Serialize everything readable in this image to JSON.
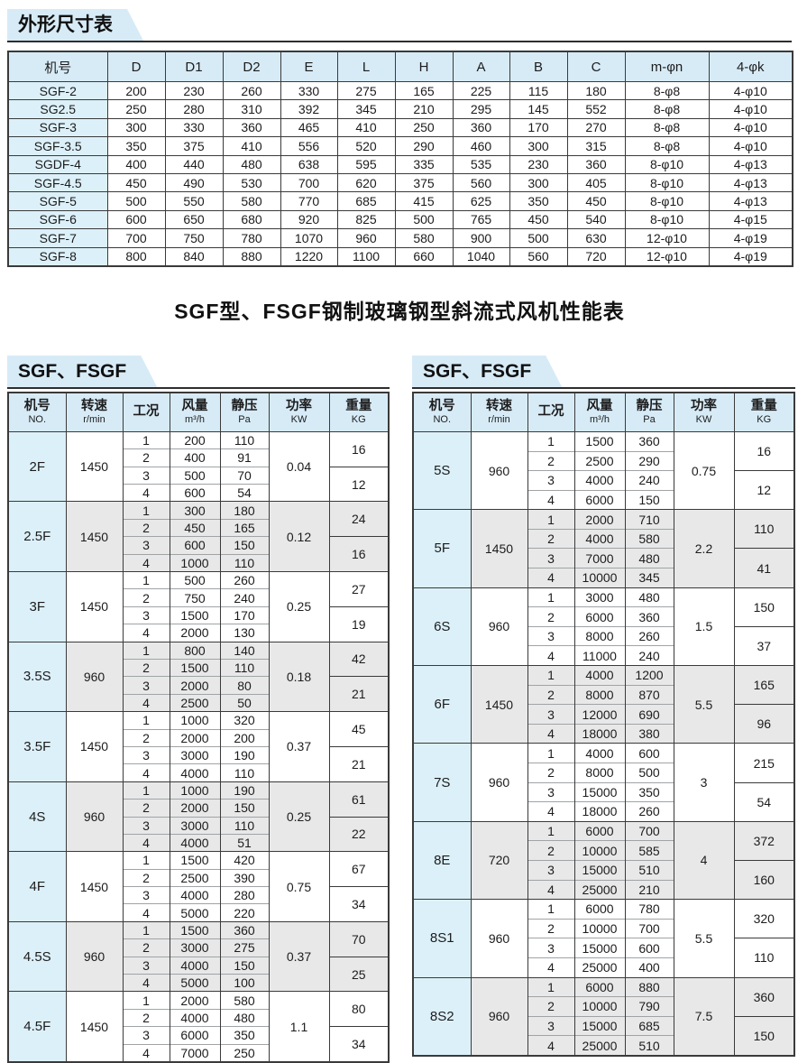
{
  "dimension_section": {
    "tab": "外形尺寸表",
    "columns": [
      "机号",
      "D",
      "D1",
      "D2",
      "E",
      "L",
      "H",
      "A",
      "B",
      "C",
      "m-φn",
      "4-φk"
    ],
    "rows": [
      [
        "SGF-2",
        "200",
        "230",
        "260",
        "330",
        "275",
        "165",
        "225",
        "115",
        "180",
        "8-φ8",
        "4-φ10"
      ],
      [
        "SG2.5",
        "250",
        "280",
        "310",
        "392",
        "345",
        "210",
        "295",
        "145",
        "552",
        "8-φ8",
        "4-φ10"
      ],
      [
        "SGF-3",
        "300",
        "330",
        "360",
        "465",
        "410",
        "250",
        "360",
        "170",
        "270",
        "8-φ8",
        "4-φ10"
      ],
      [
        "SGF-3.5",
        "350",
        "375",
        "410",
        "556",
        "520",
        "290",
        "460",
        "300",
        "315",
        "8-φ8",
        "4-φ10"
      ],
      [
        "SGDF-4",
        "400",
        "440",
        "480",
        "638",
        "595",
        "335",
        "535",
        "230",
        "360",
        "8-φ10",
        "4-φ13"
      ],
      [
        "SGF-4.5",
        "450",
        "490",
        "530",
        "700",
        "620",
        "375",
        "560",
        "300",
        "405",
        "8-φ10",
        "4-φ13"
      ],
      [
        "SGF-5",
        "500",
        "550",
        "580",
        "770",
        "685",
        "415",
        "625",
        "350",
        "450",
        "8-φ10",
        "4-φ13"
      ],
      [
        "SGF-6",
        "600",
        "650",
        "680",
        "920",
        "825",
        "500",
        "765",
        "450",
        "540",
        "8-φ10",
        "4-φ15"
      ],
      [
        "SGF-7",
        "700",
        "750",
        "780",
        "1070",
        "960",
        "580",
        "900",
        "500",
        "630",
        "12-φ10",
        "4-φ19"
      ],
      [
        "SGF-8",
        "800",
        "840",
        "880",
        "1220",
        "1100",
        "660",
        "1040",
        "560",
        "720",
        "12-φ10",
        "4-φ19"
      ]
    ]
  },
  "main_title": "SGF型、FSGF钢制玻璃钢型斜流式风机性能表",
  "performance_tables": [
    {
      "tab": "SGF、FSGF",
      "columns": [
        {
          "label": "机号",
          "unit": "NO."
        },
        {
          "label": "转速",
          "unit": "r/min"
        },
        {
          "label": "工况",
          "unit": ""
        },
        {
          "label": "风量",
          "unit": "m³/h"
        },
        {
          "label": "静压",
          "unit": "Pa"
        },
        {
          "label": "功率",
          "unit": "KW"
        },
        {
          "label": "重量",
          "unit": "KG"
        }
      ],
      "groups": [
        {
          "model": "2F",
          "speed": "1450",
          "shaded": false,
          "power": "0.04",
          "weights": [
            "16",
            "12"
          ],
          "rows": [
            [
              "1",
              "200",
              "110"
            ],
            [
              "2",
              "400",
              "91"
            ],
            [
              "3",
              "500",
              "70"
            ],
            [
              "4",
              "600",
              "54"
            ]
          ]
        },
        {
          "model": "2.5F",
          "speed": "1450",
          "shaded": true,
          "power": "0.12",
          "weights": [
            "24",
            "16"
          ],
          "rows": [
            [
              "1",
              "300",
              "180"
            ],
            [
              "2",
              "450",
              "165"
            ],
            [
              "3",
              "600",
              "150"
            ],
            [
              "4",
              "1000",
              "110"
            ]
          ]
        },
        {
          "model": "3F",
          "speed": "1450",
          "shaded": false,
          "power": "0.25",
          "weights": [
            "27",
            "19"
          ],
          "rows": [
            [
              "1",
              "500",
              "260"
            ],
            [
              "2",
              "750",
              "240"
            ],
            [
              "3",
              "1500",
              "170"
            ],
            [
              "4",
              "2000",
              "130"
            ]
          ]
        },
        {
          "model": "3.5S",
          "speed": "960",
          "shaded": true,
          "power": "0.18",
          "weights": [
            "42",
            "21"
          ],
          "rows": [
            [
              "1",
              "800",
              "140"
            ],
            [
              "2",
              "1500",
              "110"
            ],
            [
              "3",
              "2000",
              "80"
            ],
            [
              "4",
              "2500",
              "50"
            ]
          ]
        },
        {
          "model": "3.5F",
          "speed": "1450",
          "shaded": false,
          "power": "0.37",
          "weights": [
            "45",
            "21"
          ],
          "rows": [
            [
              "1",
              "1000",
              "320"
            ],
            [
              "2",
              "2000",
              "200"
            ],
            [
              "3",
              "3000",
              "190"
            ],
            [
              "4",
              "4000",
              "110"
            ]
          ]
        },
        {
          "model": "4S",
          "speed": "960",
          "shaded": true,
          "power": "0.25",
          "weights": [
            "61",
            "22"
          ],
          "rows": [
            [
              "1",
              "1000",
              "190"
            ],
            [
              "2",
              "2000",
              "150"
            ],
            [
              "3",
              "3000",
              "110"
            ],
            [
              "4",
              "4000",
              "51"
            ]
          ]
        },
        {
          "model": "4F",
          "speed": "1450",
          "shaded": false,
          "power": "0.75",
          "weights": [
            "67",
            "34"
          ],
          "rows": [
            [
              "1",
              "1500",
              "420"
            ],
            [
              "2",
              "2500",
              "390"
            ],
            [
              "3",
              "4000",
              "280"
            ],
            [
              "4",
              "5000",
              "220"
            ]
          ]
        },
        {
          "model": "4.5S",
          "speed": "960",
          "shaded": true,
          "power": "0.37",
          "weights": [
            "70",
            "25"
          ],
          "rows": [
            [
              "1",
              "1500",
              "360"
            ],
            [
              "2",
              "3000",
              "275"
            ],
            [
              "3",
              "4000",
              "150"
            ],
            [
              "4",
              "5000",
              "100"
            ]
          ]
        },
        {
          "model": "4.5F",
          "speed": "1450",
          "shaded": false,
          "power": "1.1",
          "weights": [
            "80",
            "34"
          ],
          "rows": [
            [
              "1",
              "2000",
              "580"
            ],
            [
              "2",
              "4000",
              "480"
            ],
            [
              "3",
              "6000",
              "350"
            ],
            [
              "4",
              "7000",
              "250"
            ]
          ]
        }
      ]
    },
    {
      "tab": "SGF、FSGF",
      "columns": [
        {
          "label": "机号",
          "unit": "NO."
        },
        {
          "label": "转速",
          "unit": "r/min"
        },
        {
          "label": "工况",
          "unit": ""
        },
        {
          "label": "风量",
          "unit": "m³/h"
        },
        {
          "label": "静压",
          "unit": "Pa"
        },
        {
          "label": "功率",
          "unit": "KW"
        },
        {
          "label": "重量",
          "unit": "KG"
        }
      ],
      "groups": [
        {
          "model": "5S",
          "speed": "960",
          "shaded": false,
          "power": "0.75",
          "weights": [
            "16",
            "12"
          ],
          "rows": [
            [
              "1",
              "1500",
              "360"
            ],
            [
              "2",
              "2500",
              "290"
            ],
            [
              "3",
              "4000",
              "240"
            ],
            [
              "4",
              "6000",
              "150"
            ]
          ]
        },
        {
          "model": "5F",
          "speed": "1450",
          "shaded": true,
          "power": "2.2",
          "weights": [
            "110",
            "41"
          ],
          "rows": [
            [
              "1",
              "2000",
              "710"
            ],
            [
              "2",
              "4000",
              "580"
            ],
            [
              "3",
              "7000",
              "480"
            ],
            [
              "4",
              "10000",
              "345"
            ]
          ]
        },
        {
          "model": "6S",
          "speed": "960",
          "shaded": false,
          "power": "1.5",
          "weights": [
            "150",
            "37"
          ],
          "rows": [
            [
              "1",
              "3000",
              "480"
            ],
            [
              "2",
              "6000",
              "360"
            ],
            [
              "3",
              "8000",
              "260"
            ],
            [
              "4",
              "11000",
              "240"
            ]
          ]
        },
        {
          "model": "6F",
          "speed": "1450",
          "shaded": true,
          "power": "5.5",
          "weights": [
            "165",
            "96"
          ],
          "rows": [
            [
              "1",
              "4000",
              "1200"
            ],
            [
              "2",
              "8000",
              "870"
            ],
            [
              "3",
              "12000",
              "690"
            ],
            [
              "4",
              "18000",
              "380"
            ]
          ]
        },
        {
          "model": "7S",
          "speed": "960",
          "shaded": false,
          "power": "3",
          "weights": [
            "215",
            "54"
          ],
          "rows": [
            [
              "1",
              "4000",
              "600"
            ],
            [
              "2",
              "8000",
              "500"
            ],
            [
              "3",
              "15000",
              "350"
            ],
            [
              "4",
              "18000",
              "260"
            ]
          ]
        },
        {
          "model": "8E",
          "speed": "720",
          "shaded": true,
          "power": "4",
          "weights": [
            "372",
            "160"
          ],
          "rows": [
            [
              "1",
              "6000",
              "700"
            ],
            [
              "2",
              "10000",
              "585"
            ],
            [
              "3",
              "15000",
              "510"
            ],
            [
              "4",
              "25000",
              "210"
            ]
          ]
        },
        {
          "model": "8S1",
          "speed": "960",
          "shaded": false,
          "power": "5.5",
          "weights": [
            "320",
            "110"
          ],
          "rows": [
            [
              "1",
              "6000",
              "780"
            ],
            [
              "2",
              "10000",
              "700"
            ],
            [
              "3",
              "15000",
              "600"
            ],
            [
              "4",
              "25000",
              "400"
            ]
          ]
        },
        {
          "model": "8S2",
          "speed": "960",
          "shaded": true,
          "power": "7.5",
          "weights": [
            "360",
            "150"
          ],
          "rows": [
            [
              "1",
              "6000",
              "880"
            ],
            [
              "2",
              "10000",
              "790"
            ],
            [
              "3",
              "15000",
              "685"
            ],
            [
              "4",
              "25000",
              "510"
            ]
          ]
        }
      ]
    }
  ]
}
